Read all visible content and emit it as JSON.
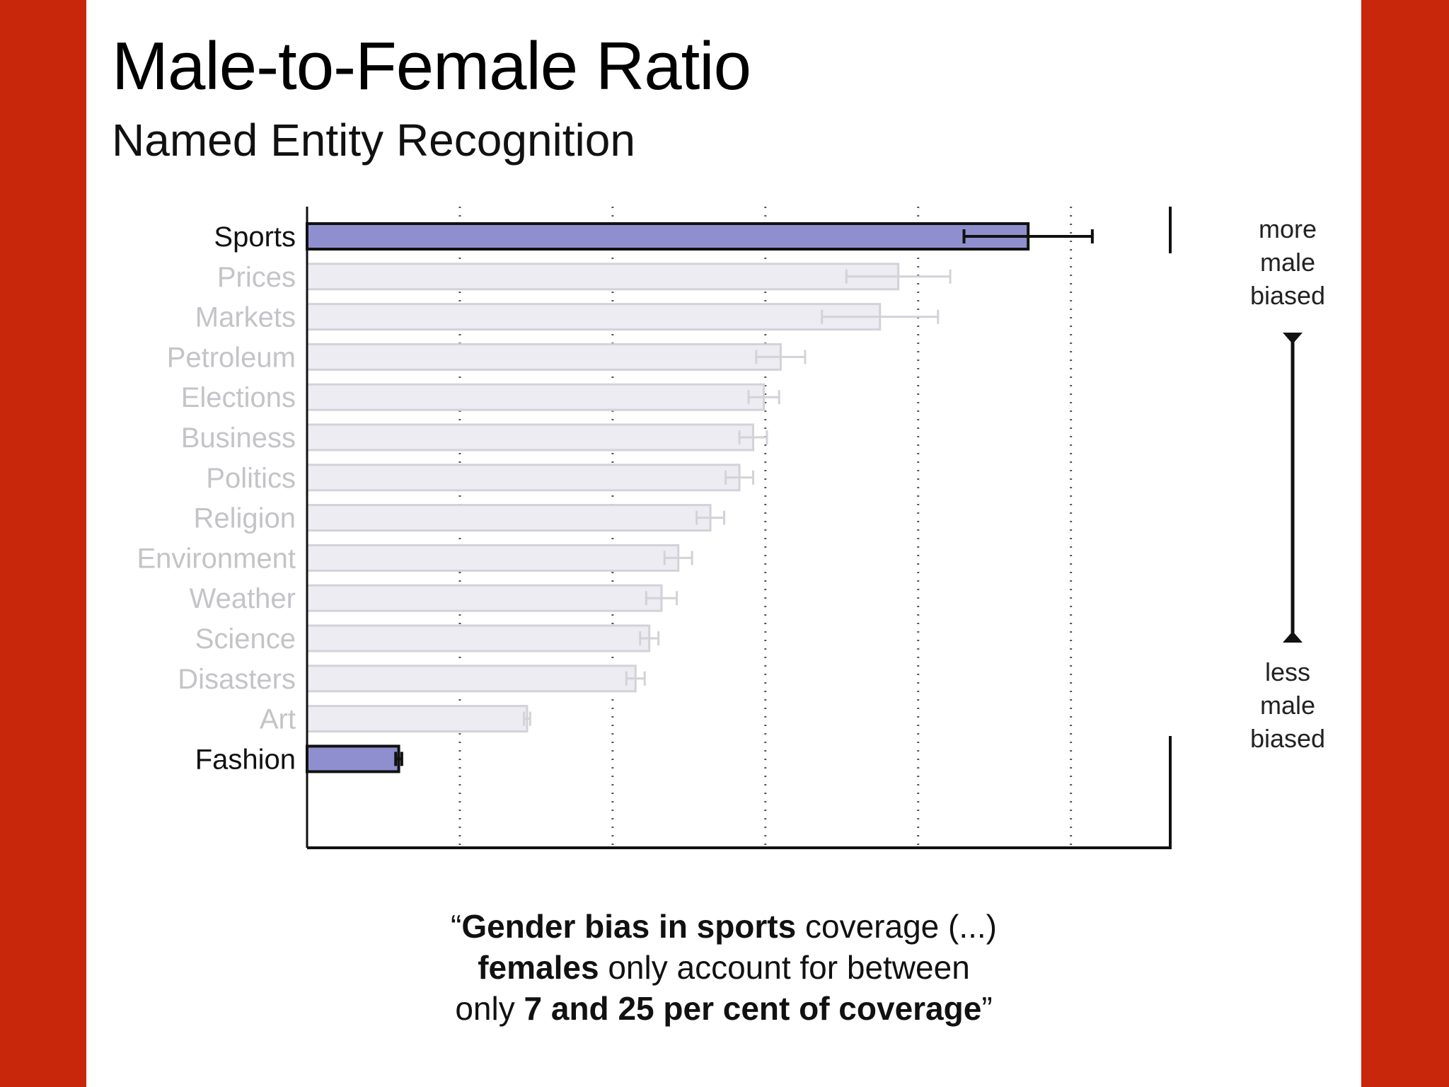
{
  "slide": {
    "title": "Male-to-Female Ratio",
    "subtitle": "Named Entity Recognition"
  },
  "quote": {
    "line1_open": "“",
    "line1_bold": "Gender bias in sports",
    "line1_rest": " coverage (...)",
    "line2_bold": "females",
    "line2_rest": " only account for between",
    "line3_start": "only ",
    "line3_bold": "7 and 25 per cent of coverage",
    "line3_close": "”"
  },
  "scale_labels": {
    "top": [
      "more",
      "male",
      "biased"
    ],
    "bottom": [
      "less",
      "male",
      "biased"
    ]
  },
  "colors": {
    "background": "#c9270c",
    "highlight_bar": "#8f8fcf",
    "faded_bar": "#ececf2",
    "faded_bar_border": "#d2d2d8",
    "faded_text": "#c4c4c8"
  },
  "chart_data": {
    "type": "bar",
    "orientation": "horizontal",
    "categories": [
      "Sports",
      "Prices",
      "Markets",
      "Petroleum",
      "Elections",
      "Business",
      "Politics",
      "Religion",
      "Environment",
      "Weather",
      "Science",
      "Disasters",
      "Art",
      "Fashion"
    ],
    "values": [
      4.72,
      3.87,
      3.75,
      3.1,
      2.99,
      2.92,
      2.83,
      2.64,
      2.43,
      2.32,
      2.24,
      2.15,
      1.44,
      0.6
    ],
    "error": [
      0.42,
      0.34,
      0.38,
      0.16,
      0.1,
      0.09,
      0.09,
      0.09,
      0.09,
      0.1,
      0.06,
      0.06,
      0.02,
      0.02
    ],
    "highlighted": [
      "Sports",
      "Fashion"
    ],
    "xlim": [
      0,
      5.65
    ],
    "x_gridlines": [
      1,
      2,
      3,
      4,
      5
    ],
    "grid": true,
    "title": "",
    "xlabel": "",
    "ylabel": ""
  }
}
